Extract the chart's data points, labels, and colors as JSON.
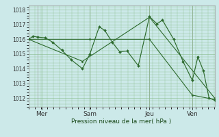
{
  "background_color": "#cce9e9",
  "grid_color": "#88bb88",
  "line_color": "#2d6a2d",
  "marker_color": "#2d6a2d",
  "xlabel": "Pression niveau de la mer( hPa )",
  "ylim": [
    1011.4,
    1018.3
  ],
  "yticks": [
    1012,
    1013,
    1014,
    1015,
    1016,
    1017,
    1018
  ],
  "xlim": [
    0,
    10.0
  ],
  "xtick_positions": [
    0.7,
    3.3,
    6.5,
    8.8
  ],
  "xtick_labels": [
    "Mer",
    "Sam",
    "Jeu",
    "Ven"
  ],
  "vline_positions": [
    0.5,
    3.3,
    6.5,
    8.8
  ],
  "series1_x": [
    0.0,
    0.25,
    0.5,
    0.9,
    1.3,
    1.8,
    2.3,
    2.9,
    3.3,
    3.8,
    4.1,
    4.5,
    4.9,
    5.3,
    5.9,
    6.5,
    6.9,
    7.2,
    7.8,
    8.3,
    8.8,
    9.1,
    9.4,
    9.7,
    10.0
  ],
  "series1_y": [
    1016.0,
    1016.2,
    1016.15,
    1016.1,
    1015.8,
    1015.25,
    1014.6,
    1014.0,
    1015.0,
    1016.85,
    1016.6,
    1015.8,
    1015.15,
    1015.2,
    1014.2,
    1017.55,
    1017.05,
    1017.3,
    1016.0,
    1014.5,
    1013.2,
    1014.8,
    1013.85,
    1012.0,
    1011.85
  ],
  "series2_x": [
    0.0,
    3.3,
    6.5,
    8.8,
    10.0
  ],
  "series2_y": [
    1016.0,
    1016.0,
    1016.0,
    1012.2,
    1011.9
  ],
  "series3_x": [
    0.0,
    2.9,
    6.5,
    10.0
  ],
  "series3_y": [
    1016.0,
    1014.5,
    1017.5,
    1012.0
  ]
}
